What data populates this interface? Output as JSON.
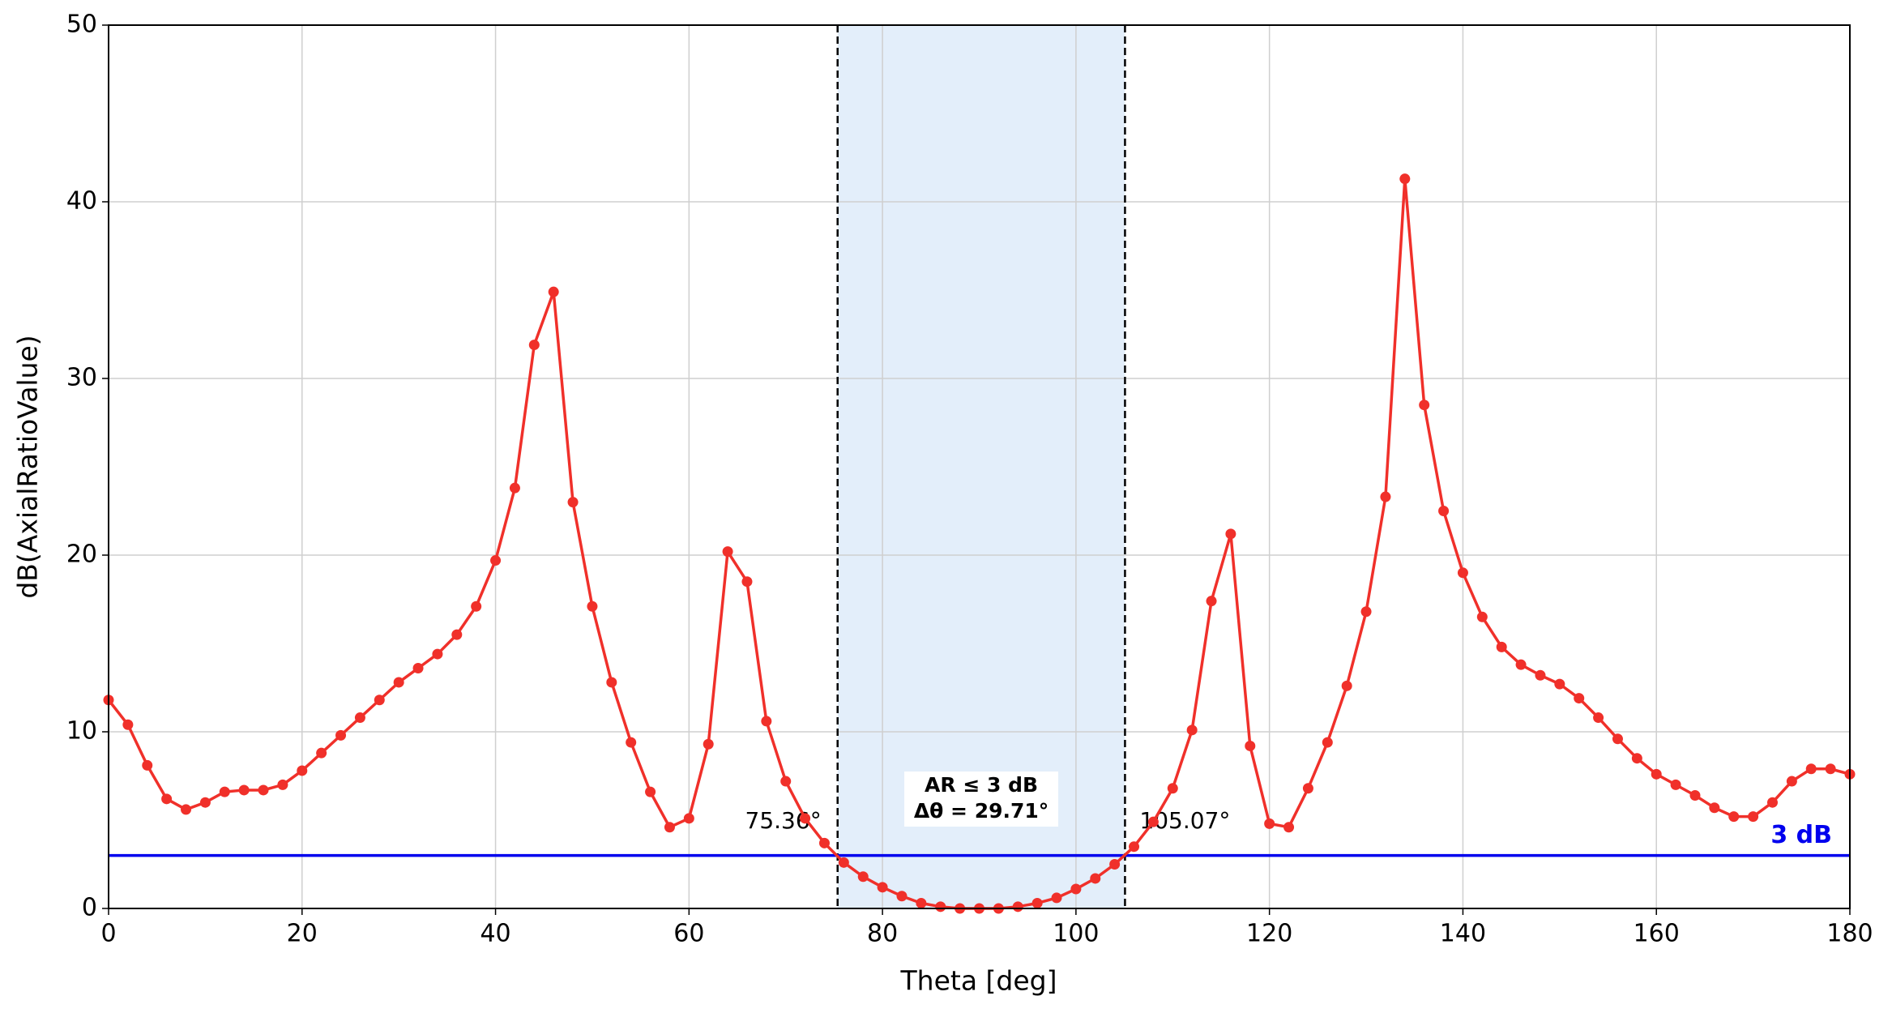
{
  "chart_data": {
    "type": "line",
    "xlabel": "Theta [deg]",
    "ylabel": "dB(AxialRatioValue)",
    "xlim": [
      0,
      180
    ],
    "ylim": [
      0,
      50
    ],
    "xticks": [
      0,
      20,
      40,
      60,
      80,
      100,
      120,
      140,
      160,
      180
    ],
    "yticks": [
      0,
      10,
      20,
      30,
      40,
      50
    ],
    "grid": true,
    "x": [
      0,
      2,
      4,
      6,
      8,
      10,
      12,
      14,
      16,
      18,
      20,
      22,
      24,
      26,
      28,
      30,
      32,
      34,
      36,
      38,
      40,
      42,
      44,
      46,
      48,
      50,
      52,
      54,
      56,
      58,
      60,
      62,
      64,
      66,
      68,
      70,
      72,
      74,
      76,
      78,
      80,
      82,
      84,
      86,
      88,
      90,
      92,
      94,
      96,
      98,
      100,
      102,
      104,
      106,
      108,
      110,
      112,
      114,
      116,
      118,
      120,
      122,
      124,
      126,
      128,
      130,
      132,
      134,
      136,
      138,
      140,
      142,
      144,
      146,
      148,
      150,
      152,
      154,
      156,
      158,
      160,
      162,
      164,
      166,
      168,
      170,
      172,
      174,
      176,
      178,
      180
    ],
    "series": [
      {
        "color": "#f0302a",
        "values": [
          11.8,
          10.4,
          8.1,
          6.2,
          5.6,
          6.0,
          6.6,
          6.7,
          6.7,
          7.0,
          7.8,
          8.8,
          9.8,
          10.8,
          11.8,
          12.8,
          13.6,
          14.4,
          15.5,
          17.1,
          19.7,
          23.8,
          31.9,
          34.9,
          23.0,
          17.1,
          12.8,
          9.4,
          6.6,
          4.6,
          5.1,
          9.3,
          20.2,
          18.5,
          10.6,
          7.2,
          5.1,
          3.7,
          2.6,
          1.8,
          1.2,
          0.7,
          0.3,
          0.1,
          0.0,
          0.0,
          0.0,
          0.1,
          0.3,
          0.6,
          1.1,
          1.7,
          2.5,
          3.5,
          4.9,
          6.8,
          10.1,
          17.4,
          21.2,
          9.2,
          4.8,
          4.6,
          6.8,
          9.4,
          12.6,
          16.8,
          23.3,
          41.3,
          28.5,
          22.5,
          19.0,
          16.5,
          14.8,
          13.8,
          13.2,
          12.7,
          11.9,
          10.8,
          9.6,
          8.5,
          7.6,
          7.0,
          6.4,
          5.7,
          5.2,
          5.2,
          6.0,
          7.2,
          7.9,
          7.9,
          7.6
        ]
      }
    ],
    "threshold": {
      "value": 3,
      "label": "3 dB",
      "color": "#0000ee"
    },
    "band_edges": [
      {
        "value": 75.36,
        "label": "75.36°"
      },
      {
        "value": 105.07,
        "label": "105.07°"
      }
    ],
    "band_color": "#e3eefa",
    "band_note": [
      "AR ≤ 3 dB",
      "Δθ = 29.71°"
    ]
  }
}
